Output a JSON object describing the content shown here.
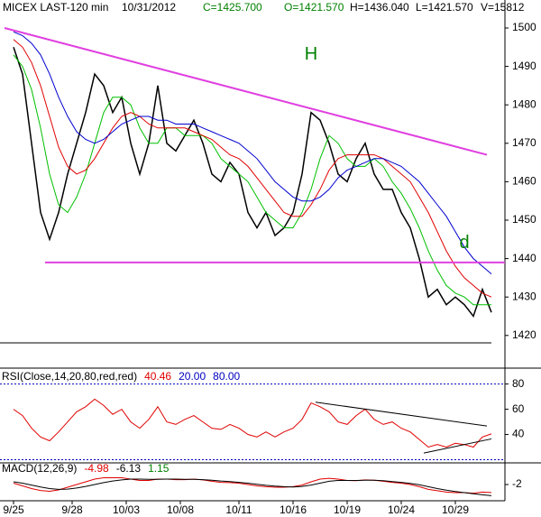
{
  "header": {
    "items": [
      {
        "text": "MICEX LAST-120 min",
        "color": "#000000"
      },
      {
        "text": "10/31/2012",
        "color": "#000000"
      },
      {
        "text": "C=1425.700",
        "color": "#008000"
      },
      {
        "text": "O=1421.570",
        "color": "#008000"
      },
      {
        "text": "H=1436.040",
        "color": "#000000"
      },
      {
        "text": "L=1421.570",
        "color": "#000000"
      },
      {
        "text": "V=15812",
        "color": "#000000"
      }
    ]
  },
  "chart_data": [
    {
      "type": "line",
      "xlim": [
        -1.5,
        54.5
      ],
      "ylim": [
        1411.5,
        1505.4
      ],
      "yticks": [
        1420,
        1430,
        1440,
        1450,
        1460,
        1470,
        1480,
        1490,
        1500
      ],
      "x": [
        0,
        1,
        2,
        3,
        4,
        5,
        6,
        7,
        8,
        9,
        10,
        11,
        12,
        13,
        14,
        15,
        16,
        17,
        18,
        19,
        20,
        21,
        22,
        23,
        24,
        25,
        26,
        27,
        28,
        29,
        30,
        31,
        32,
        33,
        34,
        35,
        36,
        37,
        38,
        39,
        40,
        41,
        42,
        43,
        44,
        45,
        46,
        47,
        48,
        49,
        50,
        51,
        52,
        53
      ],
      "series": [
        {
          "color": "#000000",
          "values": [
            1495,
            1488,
            1470,
            1452,
            1445,
            1452,
            1462,
            1470,
            1478,
            1488,
            1485,
            1478,
            1482,
            1470,
            1462,
            1470,
            1485,
            1470,
            1468,
            1472,
            1476,
            1470,
            1462,
            1460,
            1465,
            1462,
            1452,
            1448,
            1452,
            1446,
            1448,
            1452,
            1462,
            1478,
            1476,
            1470,
            1462,
            1460,
            1466,
            1470,
            1462,
            1458,
            1458,
            1452,
            1448,
            1440,
            1430,
            1432,
            1428,
            1430,
            1428,
            1425,
            1432,
            1426
          ]
        },
        {
          "color": "#00c000",
          "values": [
            1493,
            1490,
            1484,
            1474,
            1462,
            1454,
            1452,
            1456,
            1462,
            1470,
            1478,
            1482,
            1482,
            1480,
            1474,
            1470,
            1470,
            1474,
            1474,
            1472,
            1472,
            1472,
            1470,
            1466,
            1464,
            1462,
            1460,
            1456,
            1452,
            1450,
            1448,
            1448,
            1452,
            1458,
            1466,
            1472,
            1470,
            1466,
            1464,
            1464,
            1466,
            1464,
            1460,
            1457,
            1453,
            1448,
            1442,
            1437,
            1433,
            1431,
            1430,
            1428,
            1428,
            1428
          ]
        },
        {
          "color": "#e00000",
          "values": [
            1497,
            1495,
            1491,
            1485,
            1477,
            1469,
            1464,
            1462,
            1463,
            1466,
            1470,
            1474,
            1477,
            1478,
            1477,
            1475,
            1474,
            1474,
            1474,
            1474,
            1473,
            1472,
            1471,
            1469,
            1467,
            1466,
            1464,
            1461,
            1458,
            1455,
            1452,
            1451,
            1451,
            1454,
            1458,
            1463,
            1466,
            1467,
            1467,
            1467,
            1467,
            1466,
            1464,
            1462,
            1460,
            1456,
            1452,
            1447,
            1442,
            1438,
            1435,
            1433,
            1431,
            1430
          ]
        },
        {
          "color": "#0000d0",
          "values": [
            1499,
            1498,
            1496,
            1493,
            1488,
            1482,
            1477,
            1473,
            1471,
            1470,
            1471,
            1473,
            1475,
            1476,
            1477,
            1477,
            1476,
            1476,
            1475,
            1475,
            1475,
            1474,
            1473,
            1472,
            1471,
            1470,
            1468,
            1466,
            1463,
            1460,
            1458,
            1456,
            1455,
            1455,
            1456,
            1458,
            1461,
            1463,
            1464,
            1465,
            1466,
            1466,
            1465,
            1464,
            1462,
            1460,
            1457,
            1454,
            1451,
            1447,
            1443,
            1440,
            1438,
            1436
          ]
        }
      ],
      "trendlines": [
        {
          "color": "#e040e0",
          "x": [
            -1,
            52.5
          ],
          "values": [
            1500,
            1467
          ]
        },
        {
          "color": "#e040e0",
          "x": [
            3.5,
            54.5
          ],
          "values": [
            1439,
            1439
          ]
        }
      ],
      "annotations": [
        {
          "text": "H",
          "color": "#008000",
          "x": 33,
          "y": 1493
        },
        {
          "text": "d",
          "color": "#008000",
          "x": 50,
          "y": 1444
        }
      ]
    },
    {
      "type": "line",
      "xlim": [
        -1.5,
        54.5
      ],
      "ylim": [
        17.5,
        92.6
      ],
      "yticks": [
        40,
        60,
        80
      ],
      "legend": [
        {
          "text": "RSI(Close,14,20,80,red,red)",
          "color": "#000000"
        },
        {
          "text": "40.46",
          "color": "#e00000"
        },
        {
          "text": "20.00",
          "color": "#0000c0"
        },
        {
          "text": "80.00",
          "color": "#0000c0"
        }
      ],
      "levels": [
        20,
        80
      ],
      "level_color": "#0000c0",
      "x": [
        0,
        1,
        2,
        3,
        4,
        5,
        6,
        7,
        8,
        9,
        10,
        11,
        12,
        13,
        14,
        15,
        16,
        17,
        18,
        19,
        20,
        21,
        22,
        23,
        24,
        25,
        26,
        27,
        28,
        29,
        30,
        31,
        32,
        33,
        34,
        35,
        36,
        37,
        38,
        39,
        40,
        41,
        42,
        43,
        44,
        45,
        46,
        47,
        48,
        49,
        50,
        51,
        52,
        53
      ],
      "series": [
        {
          "color": "#e00000",
          "values": [
            60,
            55,
            45,
            38,
            35,
            42,
            50,
            58,
            62,
            68,
            63,
            56,
            60,
            50,
            45,
            52,
            62,
            50,
            48,
            52,
            55,
            50,
            45,
            44,
            48,
            45,
            40,
            38,
            42,
            38,
            42,
            45,
            52,
            65,
            62,
            58,
            50,
            48,
            55,
            60,
            52,
            48,
            50,
            45,
            42,
            36,
            30,
            32,
            30,
            33,
            32,
            30,
            38,
            40.46
          ]
        }
      ],
      "trendlines": [
        {
          "color": "#000000",
          "x": [
            33.5,
            52.5
          ],
          "values": [
            65.6,
            46.7
          ]
        },
        {
          "color": "#000000",
          "x": [
            45.5,
            53
          ],
          "values": [
            25.3,
            36.5
          ]
        }
      ]
    },
    {
      "type": "line",
      "xlim": [
        -1.5,
        54.5
      ],
      "ylim": [
        -8,
        6
      ],
      "yticks": [
        -2
      ],
      "legend": [
        {
          "text": "MACD(12,26,9)",
          "color": "#000000"
        },
        {
          "text": "-4.98",
          "color": "#e00000"
        },
        {
          "text": "-6.13",
          "color": "#000000"
        },
        {
          "text": "1.15",
          "color": "#008000"
        }
      ],
      "x": [
        0,
        1,
        2,
        3,
        4,
        5,
        6,
        7,
        8,
        9,
        10,
        11,
        12,
        13,
        14,
        15,
        16,
        17,
        18,
        19,
        20,
        21,
        22,
        23,
        24,
        25,
        26,
        27,
        28,
        29,
        30,
        31,
        32,
        33,
        34,
        35,
        36,
        37,
        38,
        39,
        40,
        41,
        42,
        43,
        44,
        45,
        46,
        47,
        48,
        49,
        50,
        51,
        52,
        53
      ],
      "xticks": [
        {
          "value": 0,
          "label": "9/25"
        },
        {
          "value": 6.5,
          "label": "9/28"
        },
        {
          "value": 12.5,
          "label": "10/03"
        },
        {
          "value": 18.5,
          "label": "10/08"
        },
        {
          "value": 25,
          "label": "10/11"
        },
        {
          "value": 31,
          "label": "10/16"
        },
        {
          "value": 37,
          "label": "10/19"
        },
        {
          "value": 43,
          "label": "10/24"
        },
        {
          "value": 49,
          "label": "10/29"
        }
      ],
      "series": [
        {
          "color": "#e00000",
          "values": [
            -1.5,
            -2.5,
            -3.5,
            -4.2,
            -4.5,
            -4,
            -3,
            -2,
            -1,
            0,
            0.5,
            0.5,
            0.5,
            0,
            -0.5,
            -0.5,
            0,
            0,
            -0.2,
            -0.2,
            0,
            -0.3,
            -0.8,
            -1.2,
            -1.3,
            -1.5,
            -2,
            -2.5,
            -2.8,
            -3,
            -3,
            -2.8,
            -2.2,
            -1,
            0,
            0.3,
            0,
            -0.5,
            -0.6,
            -0.3,
            -0.4,
            -0.8,
            -1.2,
            -1.5,
            -2,
            -2.8,
            -3.8,
            -4.3,
            -4.8,
            -5,
            -5,
            -5.2,
            -4.8,
            -4.98
          ]
        },
        {
          "color": "#000000",
          "values": [
            -1,
            -1.5,
            -2.2,
            -2.9,
            -3.5,
            -3.8,
            -3.7,
            -3.3,
            -2.7,
            -2,
            -1.3,
            -0.7,
            -0.3,
            0,
            0,
            -0.1,
            -0.1,
            0,
            0,
            -0.1,
            -0.1,
            -0.2,
            -0.4,
            -0.7,
            -0.9,
            -1.2,
            -1.5,
            -1.9,
            -2.3,
            -2.6,
            -2.8,
            -2.9,
            -2.7,
            -2.2,
            -1.5,
            -0.8,
            -0.5,
            -0.5,
            -0.5,
            -0.4,
            -0.4,
            -0.6,
            -0.9,
            -1.2,
            -1.6,
            -2.1,
            -2.8,
            -3.5,
            -4.1,
            -4.6,
            -5,
            -5.4,
            -5.8,
            -6.13
          ]
        }
      ]
    }
  ]
}
